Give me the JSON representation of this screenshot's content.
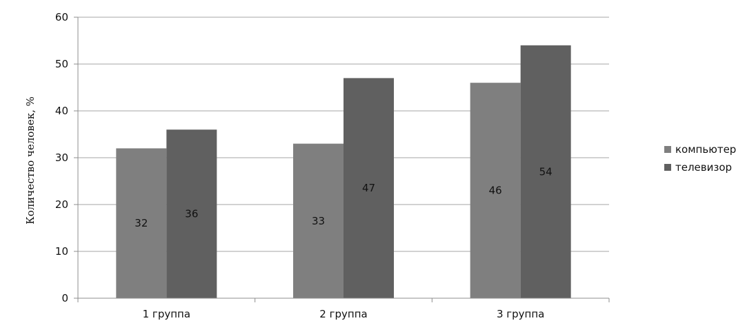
{
  "chart_data": {
    "type": "bar",
    "ylabel": "Количество человек, %",
    "categories": [
      "1 группа",
      "2 группа",
      "3 группа"
    ],
    "series": [
      {
        "name": "компьютер",
        "values": [
          32,
          33,
          46
        ],
        "color": "#7f7f7f"
      },
      {
        "name": "телевизор",
        "values": [
          36,
          47,
          54
        ],
        "color": "#606060"
      }
    ],
    "ylim": [
      0,
      60
    ],
    "yticks": [
      "0",
      "10",
      "20",
      "30",
      "40",
      "50",
      "60"
    ],
    "data_labels": [
      [
        "32",
        "33",
        "46"
      ],
      [
        "36",
        "47",
        "54"
      ]
    ],
    "grid": true,
    "legend": "right",
    "colors": {
      "grid": "#a6a6a6",
      "axis": "#8c8c8c"
    }
  }
}
